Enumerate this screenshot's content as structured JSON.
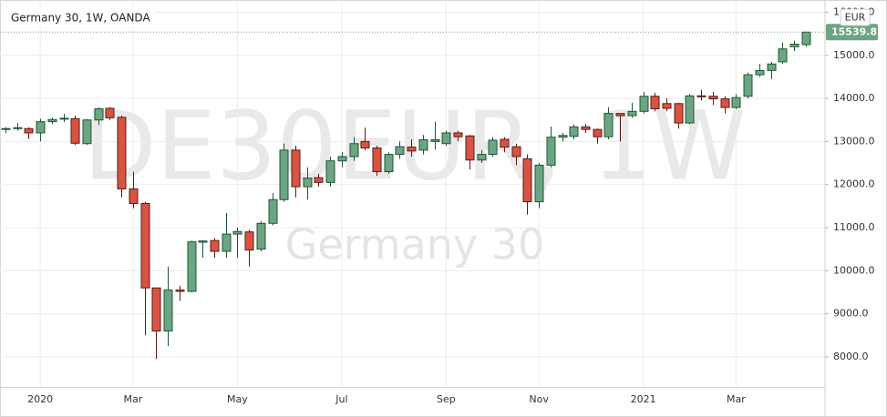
{
  "chart_data": {
    "type": "candlestick",
    "title": "Germany 30, 1W, OANDA",
    "watermark": "DE30EUR, 1W",
    "watermark_subtitle": "Germany 30",
    "currency": "EUR",
    "last_price": 15539.8,
    "up_color": "#6ba583",
    "down_color": "#d75442",
    "grid": true,
    "categories": [
      null,
      null,
      null,
      "2020",
      null,
      null,
      null,
      null,
      null,
      null,
      null,
      "Mar",
      null,
      null,
      null,
      null,
      null,
      null,
      null,
      null,
      "May",
      null,
      null,
      null,
      null,
      null,
      null,
      null,
      null,
      "Jul",
      null,
      null,
      null,
      null,
      null,
      null,
      null,
      null,
      "Sep",
      null,
      null,
      null,
      null,
      null,
      null,
      null,
      "Nov",
      null,
      null,
      null,
      null,
      null,
      null,
      null,
      null,
      "2021",
      null,
      null,
      null,
      null,
      null,
      null,
      null,
      "Mar",
      null,
      null,
      null,
      null,
      null,
      null
    ],
    "open": [
      13290,
      13300,
      13300,
      13200,
      13460,
      13520,
      13530,
      12950,
      13500,
      13770,
      13560,
      11900,
      11560,
      9600,
      8600,
      9550,
      9520,
      10660,
      10700,
      10450,
      10850,
      10900,
      10500,
      11100,
      11650,
      12800,
      11950,
      12160,
      12050,
      12550,
      12650,
      13000,
      12850,
      12300,
      12700,
      12870,
      12800,
      13000,
      12950,
      13200,
      13130,
      12570,
      12700,
      13050,
      12880,
      12600,
      11600,
      12450,
      13100,
      13120,
      13340,
      13280,
      13110,
      13650,
      13600,
      13700,
      14050,
      13880,
      13880,
      13430,
      14060,
      14050,
      13990,
      13790,
      14050,
      14550,
      14650,
      14850,
      15200,
      15250
    ],
    "high": [
      13330,
      13430,
      13330,
      13530,
      13560,
      13640,
      13600,
      13520,
      13790,
      13800,
      13600,
      12300,
      11600,
      9600,
      10100,
      9650,
      10700,
      10710,
      10760,
      11340,
      11000,
      10950,
      11150,
      11800,
      12950,
      12900,
      12400,
      12250,
      12650,
      12750,
      13100,
      13320,
      12900,
      12750,
      13000,
      13050,
      13150,
      13460,
      13250,
      13250,
      13150,
      12800,
      13100,
      13100,
      12950,
      12700,
      12500,
      13350,
      13200,
      13400,
      13400,
      13300,
      13800,
      13650,
      13900,
      14150,
      14130,
      14000,
      13900,
      14100,
      14200,
      14150,
      14050,
      14100,
      14600,
      14800,
      14850,
      15300,
      15340,
      15550
    ],
    "low": [
      13190,
      13250,
      13060,
      13000,
      13400,
      13450,
      12920,
      12920,
      13380,
      13500,
      11700,
      11450,
      8500,
      7950,
      8250,
      9300,
      9500,
      10300,
      10300,
      10300,
      10300,
      10100,
      10450,
      11050,
      11600,
      11700,
      11650,
      11950,
      11950,
      12400,
      12550,
      12800,
      12200,
      12250,
      12600,
      12650,
      12700,
      12810,
      12900,
      13000,
      12350,
      12500,
      12650,
      12750,
      12450,
      11300,
      11450,
      12400,
      13000,
      13050,
      13200,
      12950,
      13050,
      13000,
      13550,
      13650,
      13700,
      13700,
      13300,
      13400,
      13950,
      13850,
      13650,
      13750,
      14000,
      14500,
      14450,
      14800,
      15100,
      15200
    ],
    "close": [
      13300,
      13320,
      13200,
      13460,
      13510,
      13540,
      12960,
      13500,
      13760,
      13550,
      11900,
      11560,
      9600,
      8600,
      9550,
      9520,
      10670,
      10690,
      10450,
      10850,
      10910,
      10480,
      11100,
      11650,
      12800,
      11950,
      12150,
      12050,
      12550,
      12650,
      12950,
      12850,
      12300,
      12700,
      12880,
      12780,
      13040,
      13040,
      13200,
      13110,
      12570,
      12700,
      13030,
      12870,
      12650,
      11600,
      12450,
      13100,
      13140,
      13340,
      13280,
      13110,
      13650,
      13600,
      13700,
      14050,
      13760,
      13770,
      13430,
      14060,
      14050,
      13990,
      13790,
      14020,
      14550,
      14650,
      14800,
      15150,
      15260,
      15539.8
    ],
    "ylim": [
      7300,
      16180
    ],
    "yticks": [
      {
        "value": 8000,
        "label": "8000.0"
      },
      {
        "value": 9000,
        "label": "9000.0"
      },
      {
        "value": 10000,
        "label": "10000.0"
      },
      {
        "value": 11000,
        "label": "11000.0"
      },
      {
        "value": 12000,
        "label": "12000.0"
      },
      {
        "value": 13000,
        "label": "13000.0"
      },
      {
        "value": 14000,
        "label": "14000.0"
      },
      {
        "value": 15000,
        "label": "15000.0"
      },
      {
        "value": 16000,
        "label": "16000.0"
      }
    ]
  }
}
